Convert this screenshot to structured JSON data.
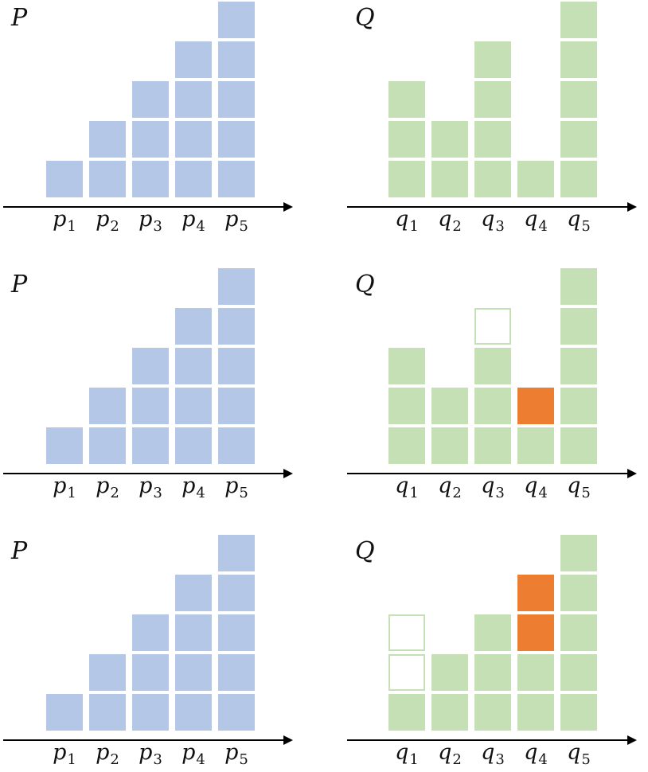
{
  "colors": {
    "p_fill": "#b4c7e7",
    "q_fill": "#c5e0b4",
    "added": "#ed7d31",
    "removed_outline": "#c5e0b4",
    "axis": "#000000"
  },
  "rows": [
    {
      "p": {
        "title": "P",
        "ticks": [
          {
            "base": "p",
            "sub": "1"
          },
          {
            "base": "p",
            "sub": "2"
          },
          {
            "base": "p",
            "sub": "3"
          },
          {
            "base": "p",
            "sub": "4"
          },
          {
            "base": "p",
            "sub": "5"
          }
        ],
        "values": [
          1,
          2,
          3,
          4,
          5
        ]
      },
      "q": {
        "title": "Q",
        "ticks": [
          {
            "base": "q",
            "sub": "1"
          },
          {
            "base": "q",
            "sub": "2"
          },
          {
            "base": "q",
            "sub": "3"
          },
          {
            "base": "q",
            "sub": "4"
          },
          {
            "base": "q",
            "sub": "5"
          }
        ],
        "values": [
          3,
          2,
          4,
          1,
          5
        ],
        "added": [
          0,
          0,
          0,
          0,
          0
        ],
        "removed": [
          0,
          0,
          0,
          0,
          0
        ]
      }
    },
    {
      "p": {
        "title": "P",
        "ticks": [
          {
            "base": "p",
            "sub": "1"
          },
          {
            "base": "p",
            "sub": "2"
          },
          {
            "base": "p",
            "sub": "3"
          },
          {
            "base": "p",
            "sub": "4"
          },
          {
            "base": "p",
            "sub": "5"
          }
        ],
        "values": [
          1,
          2,
          3,
          4,
          5
        ]
      },
      "q": {
        "title": "Q",
        "ticks": [
          {
            "base": "q",
            "sub": "1"
          },
          {
            "base": "q",
            "sub": "2"
          },
          {
            "base": "q",
            "sub": "3"
          },
          {
            "base": "q",
            "sub": "4"
          },
          {
            "base": "q",
            "sub": "5"
          }
        ],
        "values": [
          3,
          2,
          3,
          2,
          5
        ],
        "added": [
          0,
          0,
          0,
          1,
          0
        ],
        "removed": [
          0,
          0,
          1,
          0,
          0
        ]
      }
    },
    {
      "p": {
        "title": "P",
        "ticks": [
          {
            "base": "p",
            "sub": "1"
          },
          {
            "base": "p",
            "sub": "2"
          },
          {
            "base": "p",
            "sub": "3"
          },
          {
            "base": "p",
            "sub": "4"
          },
          {
            "base": "p",
            "sub": "5"
          }
        ],
        "values": [
          1,
          2,
          3,
          4,
          5
        ]
      },
      "q": {
        "title": "Q",
        "ticks": [
          {
            "base": "q",
            "sub": "1"
          },
          {
            "base": "q",
            "sub": "2"
          },
          {
            "base": "q",
            "sub": "3"
          },
          {
            "base": "q",
            "sub": "4"
          },
          {
            "base": "q",
            "sub": "5"
          }
        ],
        "values": [
          1,
          2,
          3,
          4,
          5
        ],
        "added": [
          0,
          0,
          0,
          2,
          0
        ],
        "removed": [
          2,
          0,
          0,
          0,
          0
        ]
      }
    }
  ]
}
